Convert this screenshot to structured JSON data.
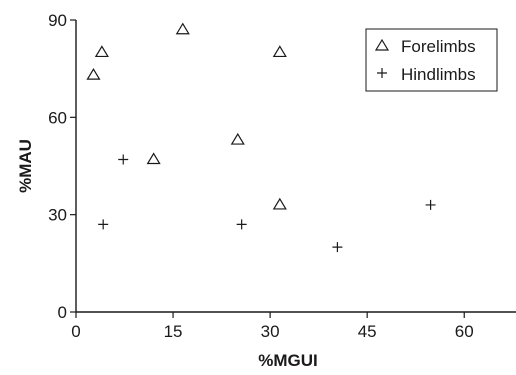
{
  "chart_data": {
    "type": "scatter",
    "xlabel": "%MGUI",
    "ylabel": "%MAU",
    "xlim": [
      0,
      68
    ],
    "ylim": [
      0,
      90
    ],
    "xticks": [
      0,
      15,
      30,
      45,
      60
    ],
    "yticks": [
      0,
      30,
      60,
      90
    ],
    "grid": false,
    "legend_position": "top-right",
    "series": [
      {
        "name": "Forelimbs",
        "marker": "triangle",
        "color": "#1a1a1a",
        "points": [
          {
            "x": 2.7,
            "y": 73
          },
          {
            "x": 4.0,
            "y": 80
          },
          {
            "x": 12.0,
            "y": 47
          },
          {
            "x": 16.5,
            "y": 87
          },
          {
            "x": 25.0,
            "y": 53
          },
          {
            "x": 31.5,
            "y": 80
          },
          {
            "x": 31.5,
            "y": 33
          }
        ]
      },
      {
        "name": "Hindlimbs",
        "marker": "plus",
        "color": "#1a1a1a",
        "points": [
          {
            "x": 4.2,
            "y": 27
          },
          {
            "x": 7.3,
            "y": 47
          },
          {
            "x": 25.6,
            "y": 27
          },
          {
            "x": 40.4,
            "y": 20
          },
          {
            "x": 54.8,
            "y": 33
          }
        ]
      }
    ]
  }
}
